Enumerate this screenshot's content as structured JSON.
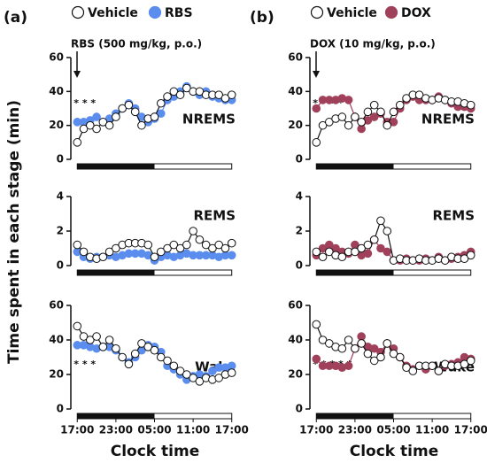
{
  "labels": {
    "panel_a": "(a)",
    "panel_b": "(b)",
    "drug_a": "RBS (500 mg/kg, p.o.)",
    "drug_b": "DOX (10 mg/kg, p.o.)",
    "ylabel": "Time spent in each stage (min)",
    "xlabel": "Clock time"
  },
  "chart_data": [
    {
      "type": "line",
      "title": "NREMS",
      "annotation": "* * *",
      "xlim": [
        -1,
        25
      ],
      "ylim": [
        0,
        60
      ],
      "yticks": [
        0,
        20,
        40,
        60
      ],
      "x": [
        0,
        1,
        2,
        3,
        4,
        5,
        6,
        7,
        8,
        9,
        10,
        11,
        12,
        13,
        14,
        15,
        16,
        17,
        18,
        19,
        20,
        21,
        22,
        23,
        24
      ],
      "series": [
        {
          "name": "RBS",
          "color": "#5b8def",
          "values": [
            22,
            22,
            23,
            25,
            22,
            24,
            27,
            30,
            33,
            30,
            25,
            22,
            24,
            27,
            35,
            37,
            40,
            43,
            40,
            38,
            40,
            37,
            36,
            35,
            35
          ]
        },
        {
          "name": "Vehicle",
          "color": "#ffffff",
          "values": [
            10,
            18,
            20,
            18,
            22,
            20,
            25,
            30,
            32,
            28,
            20,
            24,
            25,
            33,
            37,
            40,
            38,
            42,
            40,
            40,
            38,
            38,
            38,
            36,
            38
          ]
        }
      ]
    },
    {
      "type": "line",
      "title": "REMS",
      "xlim": [
        -1,
        25
      ],
      "ylim": [
        0,
        4
      ],
      "yticks": [
        0,
        2,
        4
      ],
      "x": [
        0,
        1,
        2,
        3,
        4,
        5,
        6,
        7,
        8,
        9,
        10,
        11,
        12,
        13,
        14,
        15,
        16,
        17,
        18,
        19,
        20,
        21,
        22,
        23,
        24
      ],
      "series": [
        {
          "name": "RBS",
          "color": "#5b8def",
          "values": [
            0.8,
            0.5,
            0.4,
            0.5,
            0.5,
            0.6,
            0.5,
            0.6,
            0.7,
            0.7,
            0.7,
            0.6,
            0.3,
            0.5,
            0.6,
            0.5,
            0.6,
            0.7,
            0.6,
            0.6,
            0.6,
            0.6,
            0.5,
            0.6,
            0.6
          ]
        },
        {
          "name": "Vehicle",
          "color": "#ffffff",
          "values": [
            1.2,
            0.8,
            0.5,
            0.4,
            0.5,
            0.8,
            1.0,
            1.2,
            1.3,
            1.3,
            1.3,
            1.2,
            0.5,
            0.8,
            1.0,
            1.2,
            1.0,
            1.2,
            2.0,
            1.5,
            1.2,
            1.0,
            1.2,
            1.0,
            1.3
          ]
        }
      ]
    },
    {
      "type": "line",
      "title": "Wake",
      "annotation": "* * *",
      "xlim": [
        -1,
        25
      ],
      "ylim": [
        0,
        60
      ],
      "yticks": [
        0,
        20,
        40,
        60
      ],
      "xticks": [
        {
          "value": 0,
          "label": "17:00"
        },
        {
          "value": 6,
          "label": "23:00"
        },
        {
          "value": 12,
          "label": "05:00"
        },
        {
          "value": 18,
          "label": "11:00"
        },
        {
          "value": 24,
          "label": "17:00"
        }
      ],
      "x": [
        0,
        1,
        2,
        3,
        4,
        5,
        6,
        7,
        8,
        9,
        10,
        11,
        12,
        13,
        14,
        15,
        16,
        17,
        18,
        19,
        20,
        21,
        22,
        23,
        24
      ],
      "series": [
        {
          "name": "RBS",
          "color": "#5b8def",
          "values": [
            37,
            37,
            36,
            35,
            36,
            36,
            34,
            30,
            27,
            30,
            34,
            37,
            36,
            33,
            25,
            23,
            20,
            17,
            19,
            20,
            19,
            22,
            24,
            24,
            25
          ]
        },
        {
          "name": "Vehicle",
          "color": "#ffffff",
          "values": [
            48,
            42,
            40,
            42,
            36,
            40,
            35,
            30,
            26,
            32,
            38,
            36,
            34,
            30,
            28,
            25,
            22,
            20,
            18,
            16,
            18,
            17,
            18,
            20,
            21
          ]
        }
      ]
    },
    {
      "type": "line",
      "title": "NREMS",
      "annotation": "* * * * *",
      "xlim": [
        -1,
        25
      ],
      "ylim": [
        0,
        60
      ],
      "yticks": [
        0,
        20,
        40,
        60
      ],
      "x": [
        0,
        1,
        2,
        3,
        4,
        5,
        6,
        7,
        8,
        9,
        10,
        11,
        12,
        13,
        14,
        15,
        16,
        17,
        18,
        19,
        20,
        21,
        22,
        23,
        24
      ],
      "series": [
        {
          "name": "DOX",
          "color": "#a0405a",
          "values": [
            30,
            35,
            35,
            35,
            36,
            35,
            25,
            18,
            23,
            25,
            27,
            22,
            22,
            30,
            35,
            37,
            35,
            35,
            35,
            37,
            35,
            33,
            31,
            31,
            30
          ]
        },
        {
          "name": "Vehicle",
          "color": "#ffffff",
          "values": [
            10,
            20,
            22,
            24,
            25,
            20,
            25,
            22,
            28,
            32,
            28,
            20,
            28,
            32,
            36,
            38,
            38,
            36,
            35,
            36,
            35,
            34,
            34,
            33,
            32
          ]
        }
      ]
    },
    {
      "type": "line",
      "title": "REMS",
      "xlim": [
        -1,
        25
      ],
      "ylim": [
        0,
        4
      ],
      "yticks": [
        0,
        2,
        4
      ],
      "x": [
        0,
        1,
        2,
        3,
        4,
        5,
        6,
        7,
        8,
        9,
        10,
        11,
        12,
        13,
        14,
        15,
        16,
        17,
        18,
        19,
        20,
        21,
        22,
        23,
        24
      ],
      "series": [
        {
          "name": "DOX",
          "color": "#a0405a",
          "values": [
            0.6,
            1.0,
            1.2,
            1.0,
            0.8,
            0.7,
            1.2,
            0.6,
            0.7,
            1.5,
            1.0,
            0.8,
            0.3,
            0.3,
            0.4,
            0.3,
            0.3,
            0.4,
            0.3,
            0.5,
            0.3,
            0.4,
            0.5,
            0.6,
            0.8
          ]
        },
        {
          "name": "Vehicle",
          "color": "#ffffff",
          "values": [
            0.8,
            0.5,
            0.8,
            0.6,
            0.5,
            0.8,
            0.8,
            1.0,
            1.2,
            1.5,
            2.6,
            2.0,
            0.3,
            0.4,
            0.3,
            0.3,
            0.4,
            0.3,
            0.3,
            0.4,
            0.3,
            0.5,
            0.4,
            0.4,
            0.6
          ]
        }
      ]
    },
    {
      "type": "line",
      "title": "Wake",
      "annotation": "* * * * *",
      "xlim": [
        -1,
        25
      ],
      "ylim": [
        0,
        60
      ],
      "yticks": [
        0,
        20,
        40,
        60
      ],
      "xticks": [
        {
          "value": 0,
          "label": "17:00"
        },
        {
          "value": 6,
          "label": "23:00"
        },
        {
          "value": 12,
          "label": "05:00"
        },
        {
          "value": 18,
          "label": "11:00"
        },
        {
          "value": 24,
          "label": "17:00"
        }
      ],
      "x": [
        0,
        1,
        2,
        3,
        4,
        5,
        6,
        7,
        8,
        9,
        10,
        11,
        12,
        13,
        14,
        15,
        16,
        17,
        18,
        19,
        20,
        21,
        22,
        23,
        24
      ],
      "series": [
        {
          "name": "DOX",
          "color": "#a0405a",
          "values": [
            29,
            25,
            25,
            25,
            24,
            25,
            35,
            42,
            36,
            35,
            33,
            38,
            35,
            30,
            25,
            23,
            25,
            23,
            25,
            22,
            25,
            26,
            27,
            30,
            29
          ]
        },
        {
          "name": "Vehicle",
          "color": "#ffffff",
          "values": [
            49,
            40,
            38,
            36,
            35,
            40,
            35,
            38,
            32,
            28,
            30,
            38,
            32,
            30,
            24,
            22,
            25,
            25,
            25,
            22,
            26,
            25,
            25,
            26,
            28
          ]
        }
      ]
    }
  ]
}
